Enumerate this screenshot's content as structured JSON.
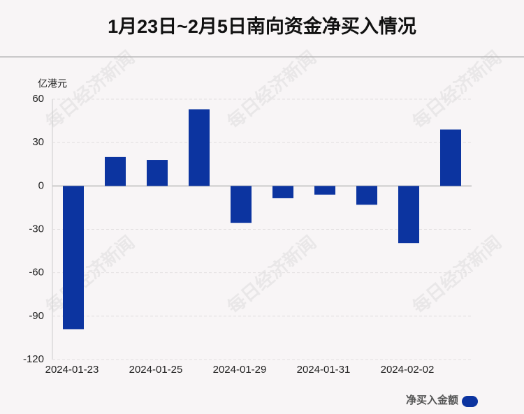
{
  "chart_data": {
    "type": "bar",
    "title": "1月23日~2月5日南向资金净买入情况",
    "y_axis_label": "亿港元",
    "categories": [
      "2024-01-23",
      null,
      "2024-01-25",
      null,
      "2024-01-29",
      null,
      "2024-01-31",
      null,
      "2024-02-02",
      null
    ],
    "series": [
      {
        "name": "净买入金额",
        "color": "#0c34a0",
        "values": [
          -99,
          20,
          18,
          53,
          -25.5,
          -8.5,
          -6,
          -13,
          -39.5,
          39
        ]
      }
    ],
    "ylim": [
      -120,
      60
    ],
    "yticks": [
      -120,
      -90,
      -60,
      -30,
      0,
      30,
      60
    ],
    "grid": true,
    "legend": "bottom-right",
    "watermark": "每日经济新闻"
  }
}
